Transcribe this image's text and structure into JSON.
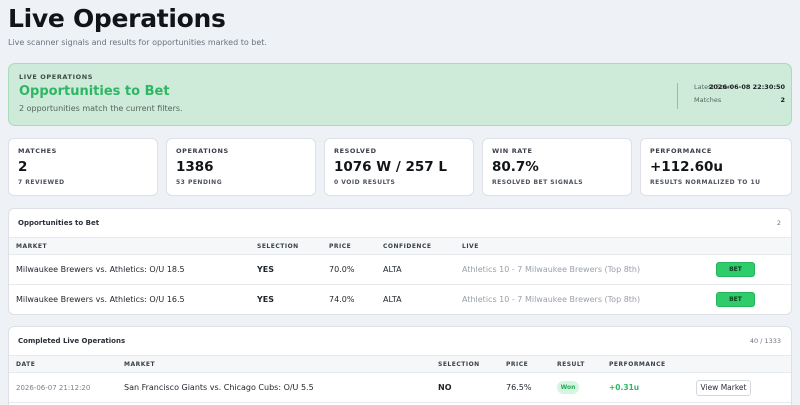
{
  "page": {
    "title": "Live Operations",
    "subtitle": "Live scanner signals and results for opportunities marked to bet."
  },
  "hero": {
    "eyebrow": "LIVE OPERATIONS",
    "title": "Opportunities to Bet",
    "subtitle": "2 opportunities match the current filters.",
    "latest_scan_label": "Latest Scan",
    "latest_scan_value": "2026-06-08 22:30:50",
    "matches_label": "Matches",
    "matches_value": "2"
  },
  "stats": [
    {
      "label": "MATCHES",
      "value": "2",
      "note": "7 REVIEWED"
    },
    {
      "label": "OPERATIONS",
      "value": "1386",
      "note": "53 PENDING"
    },
    {
      "label": "RESOLVED",
      "value": "1076 W / 257 L",
      "note": "0 VOID RESULTS"
    },
    {
      "label": "WIN RATE",
      "value": "80.7%",
      "note": "RESOLVED BET SIGNALS"
    },
    {
      "label": "PERFORMANCE",
      "value": "+112.60u",
      "note": "RESULTS NORMALIZED TO 1U"
    }
  ],
  "opportunities": {
    "title": "Opportunities to Bet",
    "count": "2",
    "columns": {
      "market": "MARKET",
      "selection": "SELECTION",
      "price": "PRICE",
      "confidence": "CONFIDENCE",
      "live": "LIVE"
    },
    "rows": [
      {
        "market": "Milwaukee Brewers vs. Athletics: O/U 18.5",
        "selection": "YES",
        "price": "70.0%",
        "confidence": "ALTA",
        "live": "Athletics 10 - 7 Milwaukee Brewers (Top 8th)",
        "action": "BET"
      },
      {
        "market": "Milwaukee Brewers vs. Athletics: O/U 16.5",
        "selection": "YES",
        "price": "74.0%",
        "confidence": "ALTA",
        "live": "Athletics 10 - 7 Milwaukee Brewers (Top 8th)",
        "action": "BET"
      }
    ]
  },
  "completed": {
    "title": "Completed Live Operations",
    "count": "40 / 1333",
    "columns": {
      "date": "DATE",
      "market": "MARKET",
      "selection": "SELECTION",
      "price": "PRICE",
      "result": "RESULT",
      "performance": "PERFORMANCE"
    },
    "rows": [
      {
        "date": "2026-06-07 21:12:20",
        "market": "San Francisco Giants vs. Chicago Cubs: O/U 5.5",
        "selection": "NO",
        "price": "76.5%",
        "result": "Won",
        "performance": "+0.31u",
        "action": "View Market"
      }
    ]
  },
  "colors": {
    "accent_green": "#2fb565",
    "bet_button": "#2ecc6b",
    "hero_bg": "#cdebd8"
  }
}
